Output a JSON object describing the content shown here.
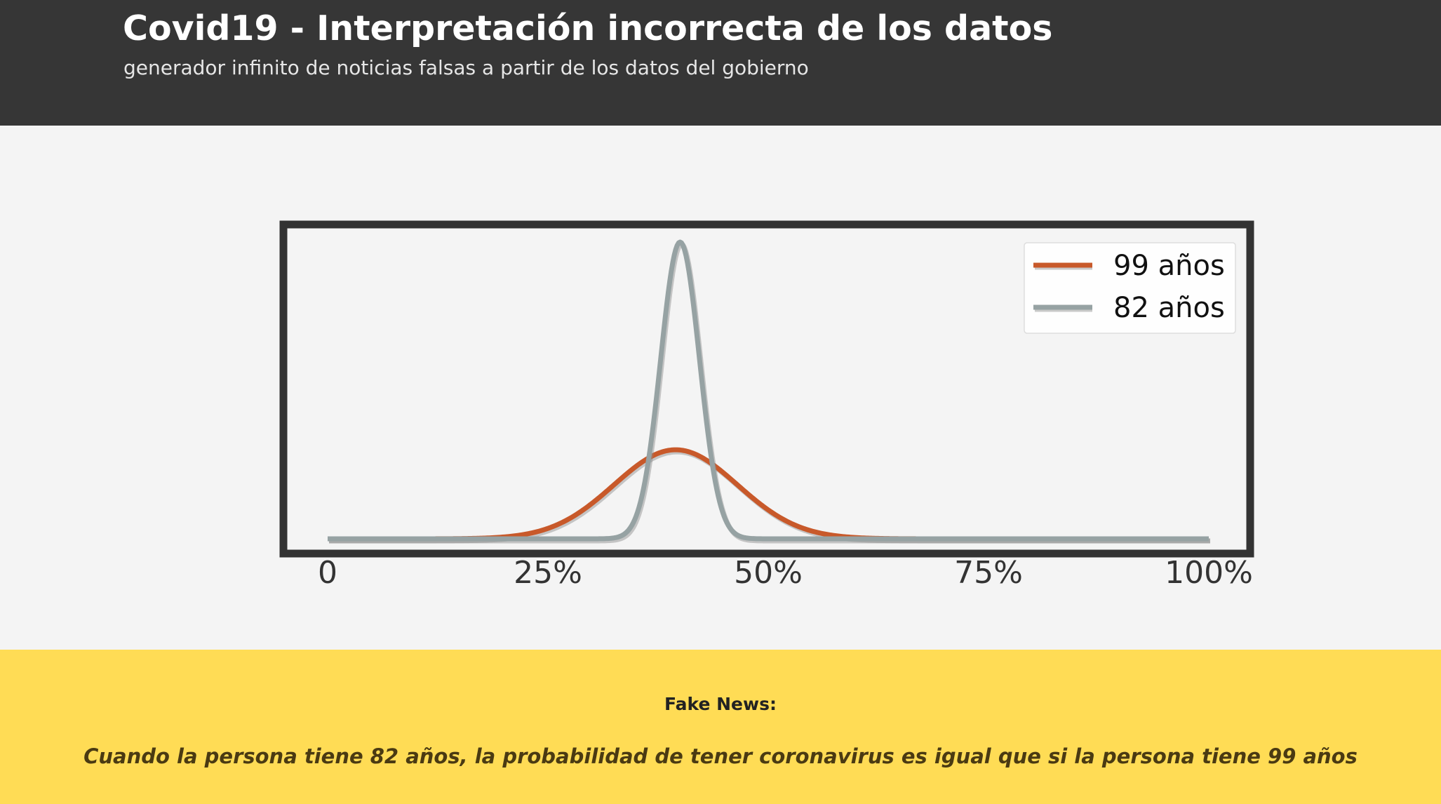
{
  "header": {
    "title": "Covid19 - Interpretación incorrecta de los datos",
    "subtitle": "generador infinito de noticias falsas a partir de los datos del gobierno"
  },
  "chart_data": {
    "type": "line",
    "title": "",
    "xlabel": "",
    "ylabel": "",
    "x_ticks": [
      "0",
      "25%",
      "50%",
      "75%",
      "100%"
    ],
    "x_tick_values": [
      0,
      25,
      50,
      75,
      100
    ],
    "xlim": [
      0,
      100
    ],
    "ylim": [
      0,
      1.0
    ],
    "grid": false,
    "legend_placement": "top-right",
    "series": [
      {
        "name": "99 años",
        "color": "#c8592a",
        "distribution": "normal",
        "mean": 39.5,
        "std": 7.0,
        "peak": 0.3
      },
      {
        "name": "82 años",
        "color": "#96a2a3",
        "distribution": "normal",
        "mean": 40.0,
        "std": 2.2,
        "peak": 1.0
      }
    ]
  },
  "footer": {
    "label": "Fake News:",
    "headline": "Cuando la persona tiene 82 años, la probabilidad de tener coronavirus es igual que si la persona tiene 99 años"
  },
  "colors": {
    "header_bg": "#363636",
    "page_bg": "#f4f4f4",
    "footer_bg": "#ffdc55",
    "frame": "#333333"
  }
}
